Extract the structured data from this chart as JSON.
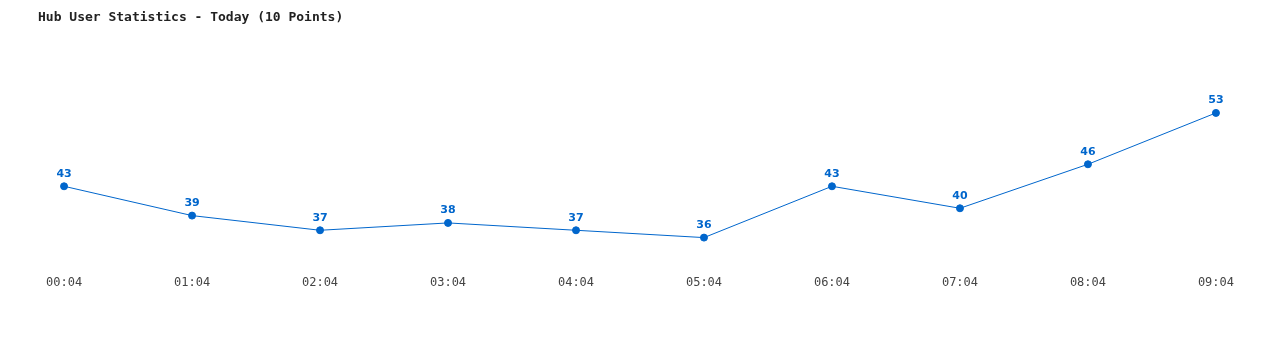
{
  "chart_data": {
    "type": "line",
    "title": "Hub User Statistics - Today (10 Points)",
    "categories": [
      "00:04",
      "01:04",
      "02:04",
      "03:04",
      "04:04",
      "05:04",
      "06:04",
      "07:04",
      "08:04",
      "09:04"
    ],
    "values": [
      43,
      39,
      37,
      38,
      37,
      36,
      43,
      40,
      46,
      53
    ],
    "color": "#0066cc",
    "marker": "circle",
    "line_style": "solid",
    "data_labels": true,
    "grid": false,
    "legend": false,
    "tick_labels": "x"
  }
}
